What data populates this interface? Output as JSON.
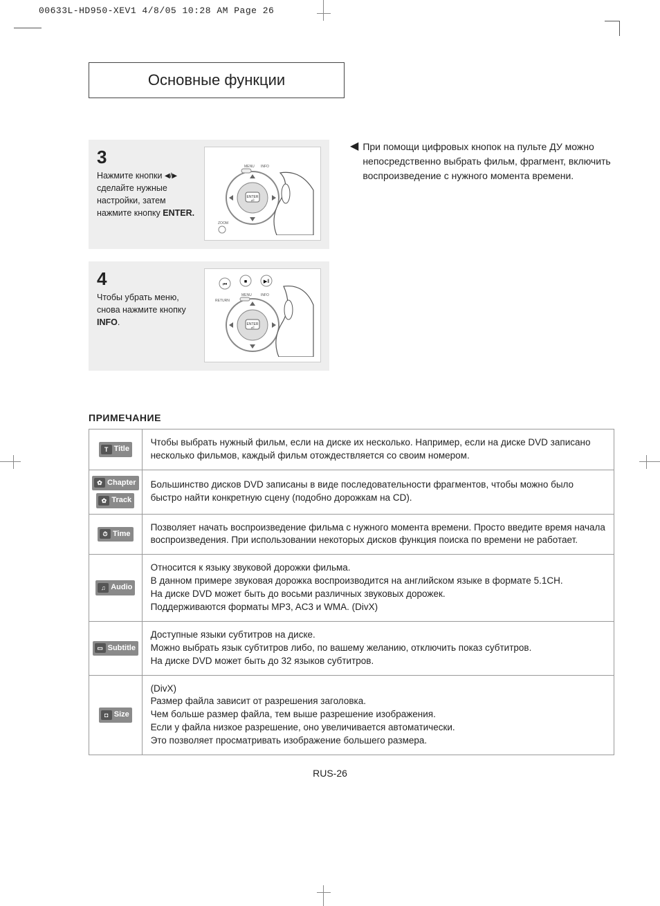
{
  "print_header": "00633L-HD950-XEV1  4/8/05  10:28 AM  Page 26",
  "title": "Основные функции",
  "step3": {
    "num": "3",
    "line1": "Нажмите кнопки ",
    "arrows": "◀/▶",
    "line2": "сделайте нужные настройки, затем нажмите кнопку ",
    "bold": "ENTER."
  },
  "step4": {
    "num": "4",
    "line1": "Чтобы убрать меню, снова нажмите кнопку ",
    "bold": "INFO",
    "tail": "."
  },
  "aside": {
    "arrow": "◀",
    "text": "При помощи цифровых кнопок на пульте ДУ можно непосредственно выбрать фильм, фрагмент, включить воспроизведение с нужного момента времени."
  },
  "note_heading": "ПРИМЕЧАНИЕ",
  "rows": [
    {
      "badges": [
        {
          "icon": "T",
          "label": "Title"
        }
      ],
      "text": "Чтобы выбрать нужный фильм, если на диске их несколько. Например, если на диске DVD записано несколько фильмов, каждый фильм отождествляется со своим номером."
    },
    {
      "badges": [
        {
          "icon": "✿",
          "label": "Chapter"
        },
        {
          "icon": "✿",
          "label": "Track"
        }
      ],
      "text": "Большинство дисков DVD записаны в виде последовательности фрагментов, чтобы можно было быстро найти конкретную сцену (подобно дорожкам на CD)."
    },
    {
      "badges": [
        {
          "icon": "⏱",
          "label": "Time"
        }
      ],
      "text": "Позволяет начать воспроизведение фильма с нужного момента времени. Просто введите время начала воспроизведения. При использовании некоторых дисков функция поиска по времени не работает."
    },
    {
      "badges": [
        {
          "icon": "♫",
          "label": "Audio"
        }
      ],
      "text": "Относится к языку звуковой дорожки фильма.\nВ данном примере звуковая дорожка воспроизводится на английском языке в формате 5.1CH.\nНа диске DVD может быть до восьми различных звуковых дорожек.\nПоддерживаются форматы MP3, AC3 и WMA. (DivX)"
    },
    {
      "badges": [
        {
          "icon": "▭",
          "label": "Subtitle"
        }
      ],
      "text": "Доступные языки субтитров на диске.\nМожно выбрать язык субтитров либо, по вашему желанию, отключить показ субтитров.\nНа диске DVD может быть до 32 языков субтитров."
    },
    {
      "badges": [
        {
          "icon": "◘",
          "label": "Size"
        }
      ],
      "text": "(DivX)\nРазмер файла зависит от разрешения заголовка.\nЧем больше размер файла, тем выше разрешение изображения.\nЕсли у файла низкое разрешение, оно увеличивается автоматически.\nЭто позволяет просматривать изображение большего размера."
    }
  ],
  "remote_labels": {
    "menu": "MENU",
    "info": "INFO",
    "enter": "ENTER",
    "zoom": "ZOOM",
    "return": "RETURN",
    "stepbk": "STEP/BK"
  },
  "page_num": "RUS-26",
  "colors": {
    "card_bg": "#eeeeee",
    "badge_bg": "#8a8a8a",
    "border": "#999999"
  }
}
